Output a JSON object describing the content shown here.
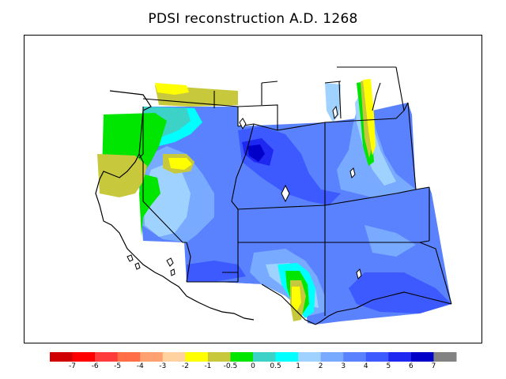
{
  "title": "PDSI reconstruction A.D. 1268",
  "colors": {
    "background": "#ffffff",
    "frame": "#000000",
    "boundaries": "#000000"
  },
  "colorbar": {
    "bins": [
      {
        "color": "#d00000"
      },
      {
        "color": "#ff0000"
      },
      {
        "color": "#ff3c3c"
      },
      {
        "color": "#ff6e46"
      },
      {
        "color": "#ffa070"
      },
      {
        "color": "#ffd2a0"
      },
      {
        "color": "#ffff00"
      },
      {
        "color": "#c8c83c"
      },
      {
        "color": "#00e600"
      },
      {
        "color": "#3cd2c8"
      },
      {
        "color": "#00ffff"
      },
      {
        "color": "#a0d2ff"
      },
      {
        "color": "#78aaff"
      },
      {
        "color": "#5a82ff"
      },
      {
        "color": "#3c5aff"
      },
      {
        "color": "#1e28f0"
      },
      {
        "color": "#0000c8"
      },
      {
        "color": "#828282"
      }
    ],
    "tick_labels": [
      "-7",
      "-6",
      "-5",
      "-4",
      "-3",
      "-2",
      "-1",
      "-0.5",
      "0",
      "0.5",
      "1",
      "2",
      "3",
      "4",
      "5",
      "6",
      "7"
    ]
  }
}
